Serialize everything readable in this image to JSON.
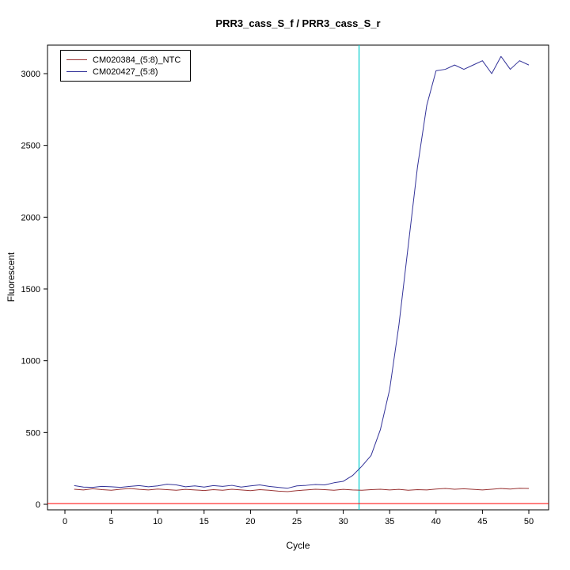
{
  "chart_data": {
    "type": "line",
    "title": "PRR3_cass_S_f / PRR3_cass_S_r",
    "xlabel": "Cycle",
    "ylabel": "Fluorescent",
    "xlim": [
      0,
      50
    ],
    "ylim": [
      0,
      3150
    ],
    "grid": false,
    "legend_position": "top-left",
    "x_ticks": [
      0,
      5,
      10,
      15,
      20,
      25,
      30,
      35,
      40,
      45,
      50
    ],
    "y_ticks": [
      0,
      500,
      1000,
      1500,
      2000,
      2500,
      3000
    ],
    "x": [
      1,
      2,
      3,
      4,
      5,
      6,
      7,
      8,
      9,
      10,
      11,
      12,
      13,
      14,
      15,
      16,
      17,
      18,
      19,
      20,
      21,
      22,
      23,
      24,
      25,
      26,
      27,
      28,
      29,
      30,
      31,
      32,
      33,
      34,
      35,
      36,
      37,
      38,
      39,
      40,
      41,
      42,
      43,
      44,
      45,
      46,
      47,
      48,
      49,
      50
    ],
    "series": [
      {
        "name": "CM020384_(5:8)_NTC",
        "color": "#993333",
        "values": [
          105,
          100,
          108,
          102,
          98,
          105,
          110,
          104,
          100,
          106,
          102,
          98,
          104,
          100,
          96,
          102,
          98,
          105,
          100,
          95,
          102,
          98,
          92,
          88,
          95,
          100,
          105,
          102,
          98,
          104,
          100,
          98,
          102,
          105,
          100,
          104,
          98,
          102,
          100,
          106,
          110,
          105,
          108,
          104,
          100,
          105,
          110,
          106,
          112,
          110
        ]
      },
      {
        "name": "CM020427_(5:8)",
        "color": "#333399",
        "values": [
          130,
          120,
          118,
          125,
          122,
          118,
          125,
          130,
          122,
          128,
          140,
          135,
          122,
          128,
          120,
          130,
          125,
          132,
          120,
          128,
          135,
          125,
          118,
          112,
          128,
          132,
          138,
          135,
          150,
          160,
          200,
          265,
          340,
          520,
          800,
          1250,
          1800,
          2350,
          2780,
          3020,
          3030,
          3060,
          3030,
          3060,
          3090,
          3000,
          3120,
          3030,
          3090,
          3060
        ]
      }
    ],
    "threshold_line": {
      "y": 5,
      "color": "#ff0000"
    },
    "ct_line": {
      "x": 31.7,
      "color": "#00cccc"
    }
  }
}
